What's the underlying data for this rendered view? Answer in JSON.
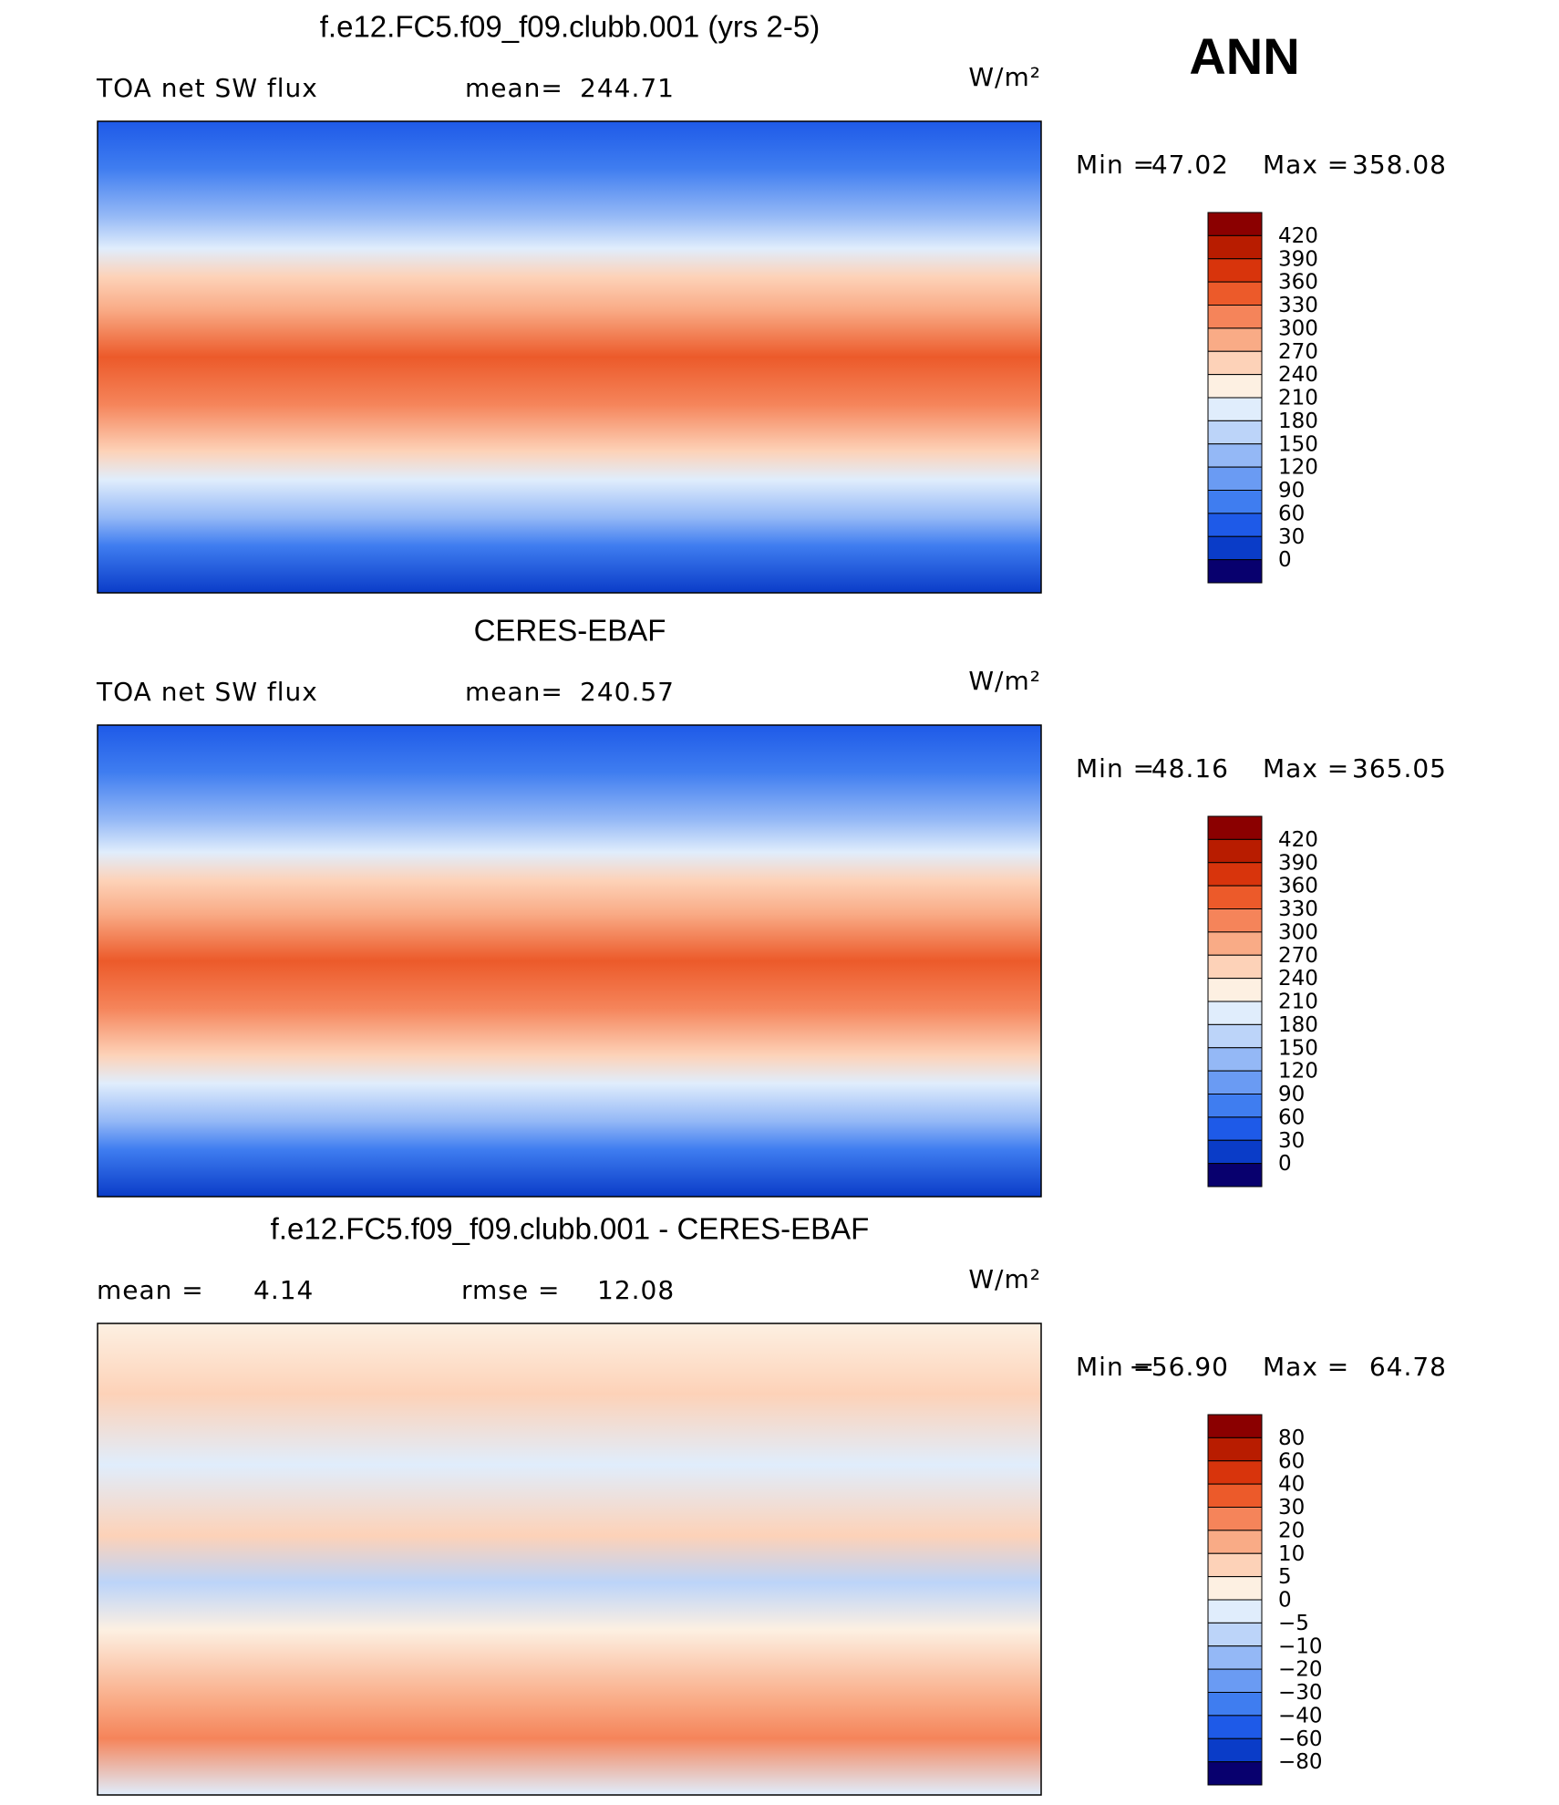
{
  "suptitle": "ANN",
  "panels": [
    {
      "title": "f.e12.FC5.f09_f09.clubb.001 (yrs 2-5)",
      "header_left": "TOA net SW flux",
      "stat_label": "mean=",
      "stat_value": 244.71,
      "units": "W/m²",
      "min_label": "Min =",
      "min": 47.02,
      "max_label": "Max =",
      "max": 358.08,
      "colorbar": {
        "levels": [
          420,
          390,
          360,
          330,
          300,
          270,
          240,
          210,
          180,
          150,
          120,
          90,
          60,
          30,
          0
        ],
        "colors": [
          "#8b0000",
          "#b81c00",
          "#d8340c",
          "#ec5a2a",
          "#f5845a",
          "#f9ab86",
          "#fdd2b8",
          "#fdf0e2",
          "#e0edfc",
          "#bcd4f9",
          "#94b8f6",
          "#6a9bf3",
          "#3f7df0",
          "#1e5ae8",
          "#0a3cc8",
          "#08006e"
        ]
      }
    },
    {
      "title": "CERES-EBAF",
      "header_left": "TOA net SW flux",
      "stat_label": "mean=",
      "stat_value": 240.57,
      "units": "W/m²",
      "min_label": "Min =",
      "min": 48.16,
      "max_label": "Max =",
      "max": 365.05,
      "colorbar": {
        "levels": [
          420,
          390,
          360,
          330,
          300,
          270,
          240,
          210,
          180,
          150,
          120,
          90,
          60,
          30,
          0
        ],
        "colors": [
          "#8b0000",
          "#b81c00",
          "#d8340c",
          "#ec5a2a",
          "#f5845a",
          "#f9ab86",
          "#fdd2b8",
          "#fdf0e2",
          "#e0edfc",
          "#bcd4f9",
          "#94b8f6",
          "#6a9bf3",
          "#3f7df0",
          "#1e5ae8",
          "#0a3cc8",
          "#08006e"
        ]
      }
    },
    {
      "title": "f.e12.FC5.f09_f09.clubb.001 - CERES-EBAF",
      "header_left": "mean =",
      "header_left_value": 4.14,
      "stat_label": "rmse =",
      "stat_value": 12.08,
      "units": "W/m²",
      "min_label": "Min =",
      "min": {
        "value": -56.9,
        "label": "−56.90"
      },
      "max_label": "Max =",
      "max": 64.78,
      "colorbar": {
        "levels": [
          80,
          60,
          40,
          30,
          20,
          10,
          5,
          0,
          {
            "value": -5,
            "label": "−5"
          },
          {
            "value": -10,
            "label": "−10"
          },
          {
            "value": -20,
            "label": "−20"
          },
          {
            "value": -30,
            "label": "−30"
          },
          {
            "value": -40,
            "label": "−40"
          },
          {
            "value": -60,
            "label": "−60"
          },
          {
            "value": -80,
            "label": "−80"
          }
        ],
        "colors": [
          "#8b0000",
          "#b81c00",
          "#d8340c",
          "#ec5a2a",
          "#f5845a",
          "#f9ab86",
          "#fdd2b8",
          "#fdf0e2",
          "#e0edfc",
          "#bcd4f9",
          "#94b8f6",
          "#6a9bf3",
          "#3f7df0",
          "#1e5ae8",
          "#0a3cc8",
          "#08006e"
        ]
      }
    }
  ]
}
